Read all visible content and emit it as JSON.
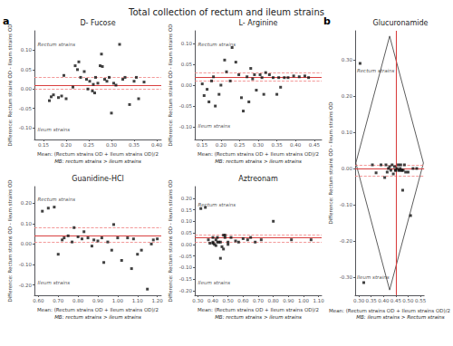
{
  "title": "Total collection of rectum and ileum strains",
  "chart_data": [
    {
      "type": "scatter",
      "panel": "a",
      "title": "D- Fucose",
      "xlabel": "Mean: (Rectum strains OD + Ileum strains OD)/2",
      "ylabel": "Difference: Rectum strains OD - Ileum strains OD",
      "caption": "MB: rectum strains > ileum strains",
      "xlim": [
        0.13,
        0.41
      ],
      "ylim": [
        -0.13,
        0.15
      ],
      "xticks": [
        0.15,
        {
          "value": 0.2,
          "label": "0.20"
        },
        0.25,
        {
          "value": 0.3,
          "label": "0.30"
        },
        0.35,
        {
          "value": 0.4,
          "label": "0.40"
        }
      ],
      "yticks": [
        {
          "value": -0.1,
          "label": "-0.10"
        },
        -0.05,
        {
          "value": 0,
          "label": "0.00"
        },
        0.05,
        {
          "value": 0.1,
          "label": "0.10"
        }
      ],
      "grid": false,
      "color": "#111111",
      "marker": "square",
      "x": [
        0.163,
        0.167,
        0.172,
        0.183,
        0.19,
        0.195,
        0.2,
        0.215,
        0.22,
        0.225,
        0.228,
        0.232,
        0.24,
        0.245,
        0.248,
        0.252,
        0.258,
        0.26,
        0.263,
        0.265,
        0.27,
        0.275,
        0.278,
        0.28,
        0.285,
        0.29,
        0.295,
        0.3,
        0.305,
        0.31,
        0.318,
        0.325,
        0.33,
        0.34,
        0.35,
        0.355,
        0.36,
        0.372
      ],
      "values": [
        -0.03,
        -0.02,
        -0.015,
        -0.022,
        -0.018,
        0.035,
        -0.025,
        0.005,
        0.06,
        0.05,
        0.07,
        0.03,
        0.045,
        0.025,
        0.0,
        0.02,
        -0.005,
        0.012,
        -0.01,
        0.03,
        0.015,
        0.06,
        0.09,
        0.058,
        0.025,
        0.02,
        0.03,
        -0.062,
        0.015,
        0.01,
        0.115,
        0.025,
        0.03,
        -0.04,
        0.02,
        0.03,
        -0.025,
        0.018
      ],
      "hlines": [
        {
          "y": 0.015,
          "color": "#d94040",
          "line_style": "solid"
        },
        {
          "y": 0.028,
          "color": "#f08080",
          "line_style": "dashed"
        },
        {
          "y": 0.003,
          "color": "#f08080",
          "line_style": "dashed"
        }
      ],
      "annotations": [
        {
          "text": "Rectum strains",
          "x": 0.137,
          "y": 0.115
        },
        {
          "text": "Ileum strains",
          "x": 0.137,
          "y": -0.105
        }
      ]
    },
    {
      "type": "scatter",
      "panel": "a",
      "title": "L- Arginine",
      "xlabel": "Mean: (Rectum strains OD + Ileum strains OD)/2",
      "ylabel": "Difference: Rectum strains OD - Ileum strains OD",
      "caption": "MB: rectum strains > ileum strains",
      "xlim": [
        0.13,
        0.47
      ],
      "ylim": [
        -0.13,
        0.13
      ],
      "xticks": [
        0.15,
        {
          "value": 0.2,
          "label": "0.20"
        },
        0.25,
        {
          "value": 0.3,
          "label": "0.30"
        },
        0.35,
        {
          "value": 0.4,
          "label": "0.40"
        },
        0.45
      ],
      "yticks": [
        {
          "value": -0.1,
          "label": "-0.10"
        },
        -0.05,
        {
          "value": 0,
          "label": "0.00"
        },
        0.05,
        {
          "value": 0.1,
          "label": "0.10"
        }
      ],
      "grid": false,
      "color": "#111111",
      "marker": "square",
      "x": [
        0.15,
        0.155,
        0.163,
        0.168,
        0.175,
        0.18,
        0.185,
        0.195,
        0.2,
        0.21,
        0.215,
        0.225,
        0.23,
        0.24,
        0.248,
        0.255,
        0.26,
        0.27,
        0.275,
        0.28,
        0.285,
        0.29,
        0.295,
        0.305,
        0.31,
        0.315,
        0.32,
        0.33,
        0.34,
        0.35,
        0.355,
        0.36,
        0.37,
        0.38,
        0.395,
        0.41,
        0.425,
        0.435
      ],
      "values": [
        0.003,
        -0.025,
        -0.01,
        -0.04,
        0.01,
        0.02,
        -0.05,
        -0.022,
        0.0,
        0.06,
        0.032,
        0.01,
        0.09,
        0.055,
        0.025,
        -0.03,
        -0.062,
        0.02,
        -0.04,
        0.04,
        0.015,
        0.025,
        -0.012,
        0.025,
        0.018,
        -0.022,
        0.03,
        0.025,
        0.018,
        -0.022,
        0.018,
        -0.005,
        0.018,
        0.018,
        0.022,
        0.02,
        0.022,
        0.018
      ],
      "hlines": [
        {
          "y": 0.018,
          "color": "#d94040",
          "line_style": "solid"
        },
        {
          "y": 0.03,
          "color": "#f08080",
          "line_style": "dashed"
        },
        {
          "y": 0.006,
          "color": "#f08080",
          "line_style": "dashed"
        }
      ],
      "annotations": [
        {
          "text": "Rectum strains",
          "x": 0.1385,
          "y": 0.098
        },
        {
          "text": "Ileum strains",
          "x": 0.1385,
          "y": -0.098
        }
      ]
    },
    {
      "type": "scatter",
      "panel": "a",
      "title": "Guanidine-HCl",
      "xlabel": "Mean: (Rectum strains OD + Ileum strains OD)/2",
      "ylabel": "Difference: Rectum strains OD - Ileum strains OD",
      "caption": "MB: rectum strains > ileum strains",
      "xlim": [
        0.58,
        1.22
      ],
      "ylim": [
        -0.25,
        0.28
      ],
      "xticks": [
        {
          "value": 0.6,
          "label": "0.60"
        },
        {
          "value": 0.7,
          "label": "0.70"
        },
        {
          "value": 0.8,
          "label": "0.80"
        },
        {
          "value": 0.9,
          "label": "0.90"
        },
        {
          "value": 1.0,
          "label": "1.00"
        },
        {
          "value": 1.1,
          "label": "1.10"
        },
        {
          "value": 1.2,
          "label": "1.20"
        }
      ],
      "yticks": [
        {
          "value": -0.2,
          "label": "-0.20"
        },
        {
          "value": -0.1,
          "label": "-0.10"
        },
        {
          "value": 0,
          "label": "0.00"
        },
        {
          "value": 0.1,
          "label": "0.10"
        },
        {
          "value": 0.2,
          "label": "0.20"
        }
      ],
      "grid": false,
      "color": "#111111",
      "marker": "square",
      "x": [
        0.62,
        0.65,
        0.68,
        0.7,
        0.72,
        0.73,
        0.75,
        0.77,
        0.78,
        0.8,
        0.82,
        0.83,
        0.85,
        0.87,
        0.88,
        0.9,
        0.92,
        0.93,
        0.95,
        0.97,
        0.98,
        1.0,
        1.02,
        1.05,
        1.07,
        1.08,
        1.1,
        1.12,
        1.15,
        1.17,
        1.18,
        1.2
      ],
      "values": [
        0.16,
        0.175,
        0.18,
        -0.05,
        0.02,
        0.03,
        0.04,
        0.01,
        0.08,
        0.035,
        0.025,
        0.06,
        0.03,
        -0.01,
        0.02,
        0.015,
        0.03,
        -0.09,
        0.01,
        -0.03,
        0.095,
        0.03,
        -0.08,
        0.03,
        -0.12,
        0.025,
        -0.05,
        -0.03,
        -0.22,
        0.0,
        0.02,
        0.025
      ],
      "hlines": [
        {
          "y": 0.038,
          "color": "#d94040",
          "line_style": "solid"
        },
        {
          "y": 0.078,
          "color": "#f08080",
          "line_style": "dashed"
        },
        {
          "y": 0.005,
          "color": "#f08080",
          "line_style": "dashed"
        }
      ],
      "annotations": [
        {
          "text": "Rectum strains",
          "x": 0.596,
          "y": 0.22
        },
        {
          "text": "Ileum strains",
          "x": 0.596,
          "y": -0.19
        }
      ]
    },
    {
      "type": "scatter",
      "panel": "a",
      "title": "Aztreonam",
      "xlabel": "Mean: (Rectum strains OD + Ileum strains OD)/2",
      "ylabel": "Difference: Rectum strains OD - Ileum strains OD",
      "caption": "MB: rectum strains > ileum strains",
      "xlim": [
        0.28,
        1.12
      ],
      "ylim": [
        -0.22,
        0.25
      ],
      "xticks": [
        {
          "value": 0.3,
          "label": "0.30"
        },
        {
          "value": 0.4,
          "label": "0.40"
        },
        {
          "value": 0.5,
          "label": "0.50"
        },
        {
          "value": 0.6,
          "label": "0.60"
        },
        {
          "value": 0.7,
          "label": "0.70"
        },
        {
          "value": 0.8,
          "label": "0.80"
        },
        {
          "value": 0.9,
          "label": "0.90"
        },
        {
          "value": 1.0,
          "label": "1.00"
        },
        {
          "value": 1.1,
          "label": "1.10"
        }
      ],
      "yticks": [
        {
          "value": -0.2,
          "label": "-0.20"
        },
        -0.15,
        {
          "value": -0.1,
          "label": "-0.10"
        },
        -0.05,
        {
          "value": 0,
          "label": "0.00"
        },
        0.05,
        {
          "value": 0.1,
          "label": "0.10"
        },
        0.15,
        {
          "value": 0.2,
          "label": "0.20"
        }
      ],
      "grid": false,
      "color": "#111111",
      "marker": "square",
      "x": [
        0.32,
        0.35,
        0.37,
        0.38,
        0.4,
        0.4,
        0.4,
        0.41,
        0.42,
        0.42,
        0.43,
        0.43,
        0.44,
        0.45,
        0.45,
        0.46,
        0.47,
        0.47,
        0.48,
        0.48,
        0.5,
        0.5,
        0.52,
        0.55,
        0.57,
        0.6,
        0.63,
        0.65,
        0.68,
        0.72,
        0.8,
        0.92,
        1.05
      ],
      "values": [
        0.155,
        0.16,
        0.02,
        0.005,
        0.01,
        0.03,
        0.005,
        0.0,
        0.02,
        -0.005,
        0.01,
        0.03,
        0.01,
        0.01,
        -0.06,
        -0.01,
        0.04,
        -0.02,
        0.03,
        0.04,
        0.0,
        0.01,
        0.03,
        0.015,
        0.01,
        0.025,
        0.02,
        0.03,
        0.01,
        0.02,
        0.1,
        0.02,
        0.02
      ],
      "hlines": [
        {
          "y": 0.028,
          "color": "#d94040",
          "line_style": "solid"
        },
        {
          "y": 0.045,
          "color": "#f08080",
          "line_style": "dashed"
        },
        {
          "y": 0.01,
          "color": "#f08080",
          "line_style": "dashed"
        }
      ],
      "annotations": [
        {
          "text": "Rectum strains",
          "x": 0.301,
          "y": 0.17
        },
        {
          "text": "Ileum strains",
          "x": 0.301,
          "y": -0.165
        }
      ]
    },
    {
      "type": "scatter",
      "panel": "b",
      "title": "Glucuronamide",
      "xlabel": "Mean: (Rectum strains OD + Ileum strains OD)/2",
      "ylabel": "Difference: Rectum strains OD - Ileum strains OD",
      "caption": "MB: ileum strains > Rectum strains",
      "xlim": [
        0.285,
        0.565
      ],
      "ylim": [
        -0.35,
        0.38
      ],
      "xticks": [
        {
          "value": 0.3,
          "label": "0.30"
        },
        0.35,
        {
          "value": 0.4,
          "label": "0.40"
        },
        0.45,
        {
          "value": 0.5,
          "label": "0.50"
        },
        0.55
      ],
      "yticks": [
        {
          "value": -0.3,
          "label": "-0.30"
        },
        {
          "value": -0.2,
          "label": "-0.20"
        },
        {
          "value": -0.1,
          "label": "-0.10"
        },
        {
          "value": 0,
          "label": "0.00"
        },
        {
          "value": 0.1,
          "label": "0.10"
        },
        {
          "value": 0.2,
          "label": "0.20"
        },
        {
          "value": 0.3,
          "label": "0.30"
        }
      ],
      "grid": false,
      "color": "#111111",
      "marker": "square",
      "x": [
        0.305,
        0.32,
        0.355,
        0.37,
        0.39,
        0.405,
        0.41,
        0.415,
        0.42,
        0.425,
        0.43,
        0.435,
        0.44,
        0.445,
        0.448,
        0.45,
        0.455,
        0.46,
        0.462,
        0.465,
        0.468,
        0.47,
        0.473,
        0.475,
        0.478,
        0.48,
        0.485,
        0.49,
        0.5,
        0.51,
        0.52,
        0.535
      ],
      "values": [
        0.29,
        -0.315,
        0.01,
        -0.012,
        0.01,
        -0.025,
        0.01,
        -0.01,
        0.0,
        0.005,
        -0.005,
        0.01,
        -0.015,
        0.005,
        -0.005,
        -0.005,
        0.0,
        0.01,
        -0.005,
        -0.005,
        0.0,
        0.01,
        -0.005,
        -0.005,
        -0.06,
        -0.005,
        0.01,
        -0.01,
        -0.01,
        -0.13,
        0.0,
        0.0
      ],
      "hlines": [
        {
          "y": -0.003,
          "color": "#d94040",
          "line_style": "solid"
        },
        {
          "y": 0.01,
          "color": "#f08080",
          "line_style": "dashed"
        },
        {
          "y": -0.016,
          "color": "#f08080",
          "line_style": "dashed"
        }
      ],
      "vlines": [
        {
          "x": 0.445,
          "color": "#d94040",
          "line_style": "solid"
        }
      ],
      "outline": {
        "x": [
          0.425,
          0.5622,
          0.425,
          0.2878,
          0.425
        ],
        "y": [
          0.3654,
          0.015,
          -0.3354,
          0.015,
          0.3654
        ],
        "color": "#333333"
      },
      "annotations": [
        {
          "text": "Rectum strains",
          "x": 0.292,
          "y": 0.27
        },
        {
          "text": "Ileum strains",
          "x": 0.292,
          "y": -0.3
        }
      ]
    }
  ]
}
